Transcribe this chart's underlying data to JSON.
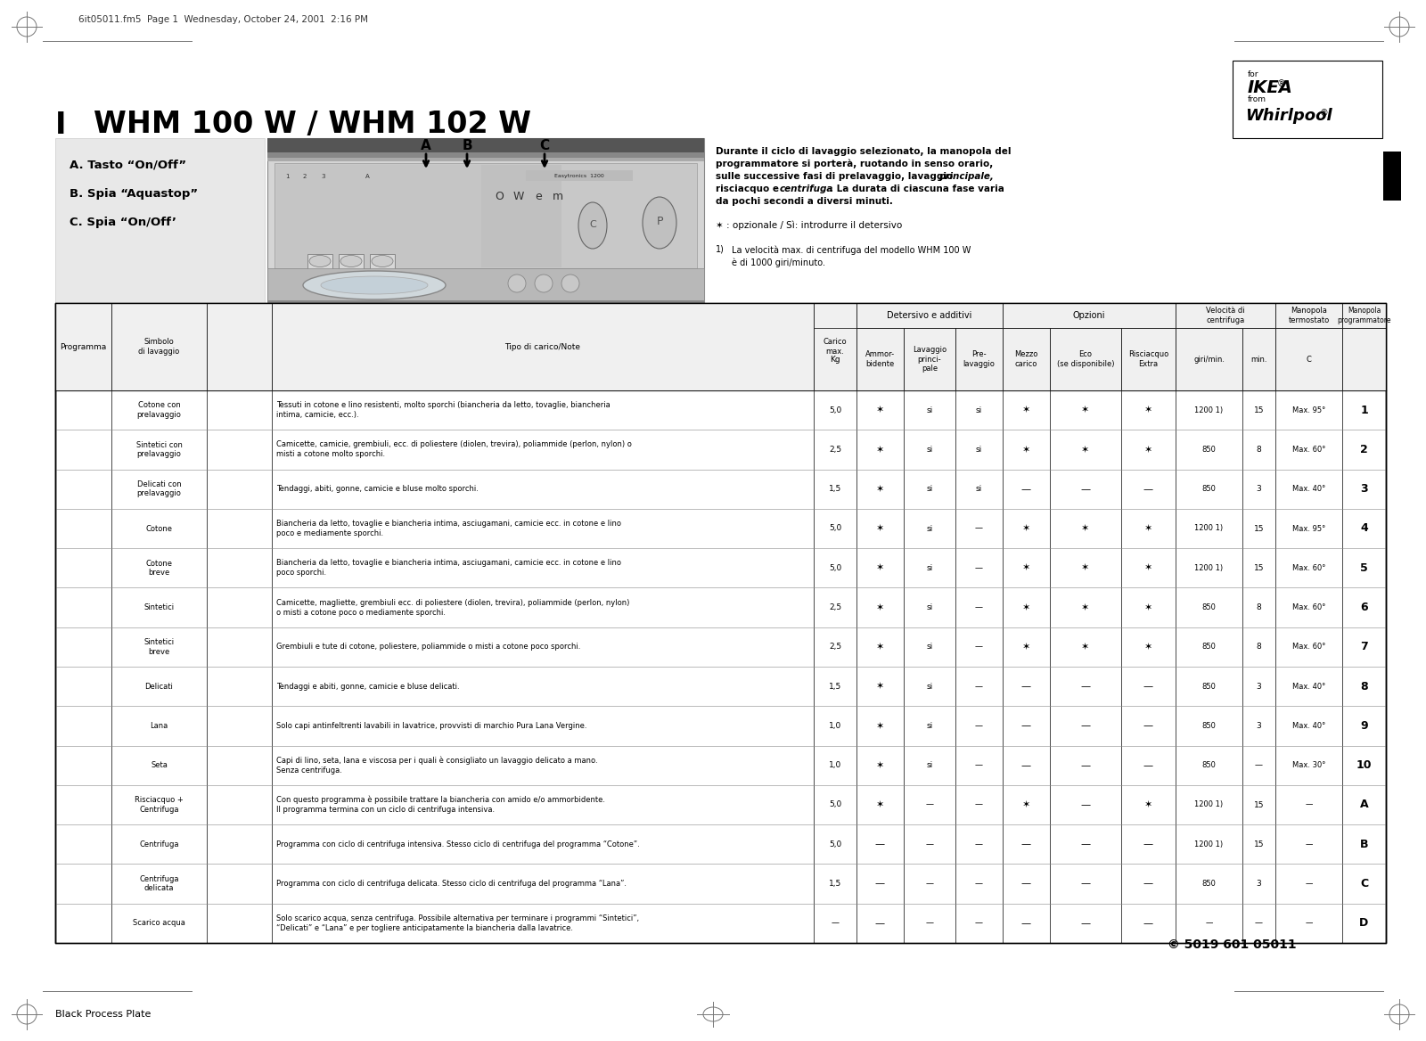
{
  "page_header": "6it05011.fm5  Page 1  Wednesday, October 24, 2001  2:16 PM",
  "title_I": "I",
  "title_main": "WHM 100 W / WHM 102 W",
  "abc_labels": [
    "A. Tasto “On/Off”",
    "B. Spia “Aquastop”",
    "C. Spia “On/Off’"
  ],
  "right_text_line1": "Durante il ciclo di lavaggio selezionato, la manopola del",
  "right_text_line2": "programmatore si porterà, ruotando in senso orario,",
  "right_text_line3": "sulle successive fasi di prelavaggio, lavaggio ",
  "right_text_line3b": "principale,",
  "right_text_line4": "risciacquo e ",
  "right_text_line4b": "centrifuga",
  "right_text_line4c": ". La durata di ciascuna fase varia",
  "right_text_line5": "da pochi secondi a diversi minuti.",
  "right_text": "Durante il ciclo di lavaggio selezionato, la manopola del\nprogrammatore si porterà, ruotando in senso orario,\nsulle successive fasi di prelavaggio, lavaggio principale,\nrisciacquo e centrifuga. La durata di ciascuna fase varia\nda pochi secondi a diversi minuti.",
  "footnote1": "✶ : opzionale / Sì: introdurre il detersivo",
  "footnote2_num": "1)",
  "footnote2_text": "La velocità max. di centrifuga del modello WHM 100 W\nè di 1000 giri/minuto.",
  "product_code": "© 5019 601 05011",
  "bottom_text": "Black Process Plate",
  "table_rows": [
    {
      "prog": "Cotone con\nprelavaggio",
      "note": "Tessuti in cotone e lino resistenti, molto sporchi (biancheria da letto, tovaglie, biancheria\nintima, camicie, ecc.).",
      "kg": "5,0",
      "ammorbidente": "✶",
      "lavaggio": "si",
      "prelavaggio": "si",
      "mezzo": "✶",
      "eco": "✶",
      "risciacquo": "✶",
      "giri": "1200 1)",
      "min": "15",
      "temp": "Max. 95°",
      "num": "1"
    },
    {
      "prog": "Sintetici con\nprelavaggio",
      "note": "Camicette, camicie, grembiuli, ecc. di poliestere (diolen, trevira), poliammide (perlon, nylon) o\nmisti a cotone molto sporchi.",
      "kg": "2,5",
      "ammorbidente": "✶",
      "lavaggio": "si",
      "prelavaggio": "si",
      "mezzo": "✶",
      "eco": "✶",
      "risciacquo": "✶",
      "giri": "850",
      "min": "8",
      "temp": "Max. 60°",
      "num": "2"
    },
    {
      "prog": "Delicati con\nprelavaggio",
      "note": "Tendaggi, abiti, gonne, camicie e bluse molto sporchi.",
      "kg": "1,5",
      "ammorbidente": "✶",
      "lavaggio": "si",
      "prelavaggio": "si",
      "mezzo": "—",
      "eco": "—",
      "risciacquo": "—",
      "giri": "850",
      "min": "3",
      "temp": "Max. 40°",
      "num": "3"
    },
    {
      "prog": "Cotone",
      "note": "Biancheria da letto, tovaglie e biancheria intima, asciugamani, camicie ecc. in cotone e lino\npoco e mediamente sporchi.",
      "kg": "5,0",
      "ammorbidente": "✶",
      "lavaggio": "si",
      "prelavaggio": "—",
      "mezzo": "✶",
      "eco": "✶",
      "risciacquo": "✶",
      "giri": "1200 1)",
      "min": "15",
      "temp": "Max. 95°",
      "num": "4"
    },
    {
      "prog": "Cotone\nbreve",
      "note": "Biancheria da letto, tovaglie e biancheria intima, asciugamani, camicie ecc. in cotone e lino\npoco sporchi.",
      "kg": "5,0",
      "ammorbidente": "✶",
      "lavaggio": "si",
      "prelavaggio": "—",
      "mezzo": "✶",
      "eco": "✶",
      "risciacquo": "✶",
      "giri": "1200 1)",
      "min": "15",
      "temp": "Max. 60°",
      "num": "5"
    },
    {
      "prog": "Sintetici",
      "note": "Camicette, magliette, grembiuli ecc. di poliestere (diolen, trevira), poliammide (perlon, nylon)\no misti a cotone poco o mediamente sporchi.",
      "kg": "2,5",
      "ammorbidente": "✶",
      "lavaggio": "si",
      "prelavaggio": "—",
      "mezzo": "✶",
      "eco": "✶",
      "risciacquo": "✶",
      "giri": "850",
      "min": "8",
      "temp": "Max. 60°",
      "num": "6"
    },
    {
      "prog": "Sintetici\nbreve",
      "note": "Grembiuli e tute di cotone, poliestere, poliammide o misti a cotone poco sporchi.",
      "kg": "2,5",
      "ammorbidente": "✶",
      "lavaggio": "si",
      "prelavaggio": "—",
      "mezzo": "✶",
      "eco": "✶",
      "risciacquo": "✶",
      "giri": "850",
      "min": "8",
      "temp": "Max. 60°",
      "num": "7"
    },
    {
      "prog": "Delicati",
      "note": "Tendaggi e abiti, gonne, camicie e bluse delicati.",
      "kg": "1,5",
      "ammorbidente": "✶",
      "lavaggio": "si",
      "prelavaggio": "—",
      "mezzo": "—",
      "eco": "—",
      "risciacquo": "—",
      "giri": "850",
      "min": "3",
      "temp": "Max. 40°",
      "num": "8"
    },
    {
      "prog": "Lana",
      "note": "Solo capi antinfeltrenti lavabili in lavatrice, provvisti di marchio Pura Lana Vergine.",
      "kg": "1,0",
      "ammorbidente": "✶",
      "lavaggio": "si",
      "prelavaggio": "—",
      "mezzo": "—",
      "eco": "—",
      "risciacquo": "—",
      "giri": "850",
      "min": "3",
      "temp": "Max. 40°",
      "num": "9"
    },
    {
      "prog": "Seta",
      "note": "Capi di lino, seta, lana e viscosa per i quali è consigliato un lavaggio delicato a mano.\nSenza centrifuga.",
      "kg": "1,0",
      "ammorbidente": "✶",
      "lavaggio": "si",
      "prelavaggio": "—",
      "mezzo": "—",
      "eco": "—",
      "risciacquo": "—",
      "giri": "850",
      "min": "—",
      "temp": "Max. 30°",
      "num": "10"
    },
    {
      "prog": "Risciacquo +\nCentrifuga",
      "note": "Con questo programma è possibile trattare la biancheria con amido e/o ammorbidente.\nIl programma termina con un ciclo di centrifuga intensiva.",
      "kg": "5,0",
      "ammorbidente": "✶",
      "lavaggio": "—",
      "prelavaggio": "—",
      "mezzo": "✶",
      "eco": "—",
      "risciacquo": "✶",
      "giri": "1200 1)",
      "min": "15",
      "temp": "—",
      "num": "A"
    },
    {
      "prog": "Centrifuga",
      "note": "Programma con ciclo di centrifuga intensiva. Stesso ciclo di centrifuga del programma “Cotone”.",
      "kg": "5,0",
      "ammorbidente": "—",
      "lavaggio": "—",
      "prelavaggio": "—",
      "mezzo": "—",
      "eco": "—",
      "risciacquo": "—",
      "giri": "1200 1)",
      "min": "15",
      "temp": "—",
      "num": "B"
    },
    {
      "prog": "Centrifuga\ndelicata",
      "note": "Programma con ciclo di centrifuga delicata. Stesso ciclo di centrifuga del programma “Lana”.",
      "kg": "1,5",
      "ammorbidente": "—",
      "lavaggio": "—",
      "prelavaggio": "—",
      "mezzo": "—",
      "eco": "—",
      "risciacquo": "—",
      "giri": "850",
      "min": "3",
      "temp": "—",
      "num": "C"
    },
    {
      "prog": "Scarico acqua",
      "note": "Solo scarico acqua, senza centrifuga. Possibile alternativa per terminare i programmi “Sintetici”,\n“Delicati” e “Lana” e per togliere anticipatamente la biancheria dalla lavatrice.",
      "kg": "—",
      "ammorbidente": "—",
      "lavaggio": "—",
      "prelavaggio": "—",
      "mezzo": "—",
      "eco": "—",
      "risciacquo": "—",
      "giri": "—",
      "min": "—",
      "temp": "—",
      "num": "D"
    }
  ]
}
